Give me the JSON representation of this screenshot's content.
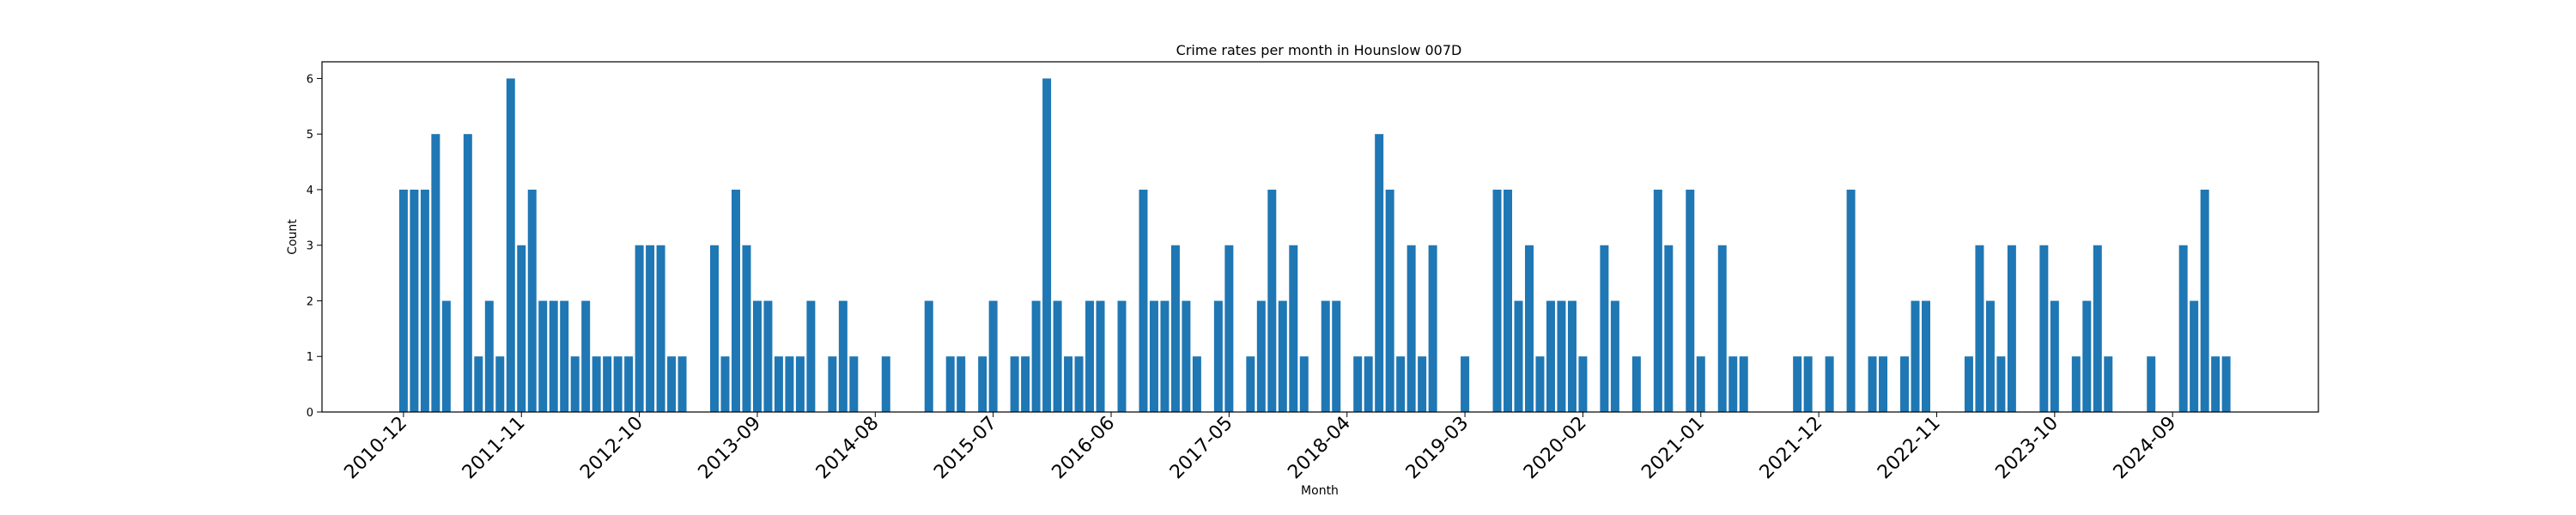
{
  "chart_data": {
    "type": "bar",
    "title": "Crime rates per month in Hounslow 007D",
    "xlabel": "Month",
    "ylabel": "Count",
    "ylim": [
      0,
      6.3
    ],
    "yticks": [
      0,
      1,
      2,
      3,
      4,
      5,
      6
    ],
    "bar_color": "#1f77b4",
    "xticks": [
      {
        "label": "2010-12",
        "x": 0
      },
      {
        "label": "2011-11",
        "x": 11
      },
      {
        "label": "2012-10",
        "x": 22
      },
      {
        "label": "2013-09",
        "x": 33
      },
      {
        "label": "2014-08",
        "x": 44
      },
      {
        "label": "2015-07",
        "x": 55
      },
      {
        "label": "2016-06",
        "x": 66
      },
      {
        "label": "2017-05",
        "x": 77
      },
      {
        "label": "2018-04",
        "x": 88
      },
      {
        "label": "2019-03",
        "x": 99
      },
      {
        "label": "2020-02",
        "x": 110
      },
      {
        "label": "2021-01",
        "x": 121
      },
      {
        "label": "2021-12",
        "x": 132
      },
      {
        "label": "2022-11",
        "x": 143
      },
      {
        "label": "2023-10",
        "x": 154
      },
      {
        "label": "2024-09",
        "x": 165
      }
    ],
    "bars": [
      [
        0,
        4
      ],
      [
        1,
        4
      ],
      [
        2,
        4
      ],
      [
        3,
        5
      ],
      [
        4,
        2
      ],
      [
        6,
        5
      ],
      [
        7,
        1
      ],
      [
        8,
        2
      ],
      [
        9,
        1
      ],
      [
        10,
        6
      ],
      [
        11,
        3
      ],
      [
        12,
        4
      ],
      [
        13,
        2
      ],
      [
        14,
        2
      ],
      [
        15,
        2
      ],
      [
        16,
        1
      ],
      [
        17,
        2
      ],
      [
        18,
        1
      ],
      [
        19,
        1
      ],
      [
        20,
        1
      ],
      [
        21,
        1
      ],
      [
        22,
        3
      ],
      [
        23,
        3
      ],
      [
        24,
        3
      ],
      [
        25,
        1
      ],
      [
        26,
        1
      ],
      [
        29,
        3
      ],
      [
        30,
        1
      ],
      [
        31,
        4
      ],
      [
        32,
        3
      ],
      [
        33,
        2
      ],
      [
        34,
        2
      ],
      [
        35,
        1
      ],
      [
        36,
        1
      ],
      [
        37,
        1
      ],
      [
        38,
        2
      ],
      [
        40,
        1
      ],
      [
        41,
        2
      ],
      [
        42,
        1
      ],
      [
        45,
        1
      ],
      [
        49,
        2
      ],
      [
        51,
        1
      ],
      [
        52,
        1
      ],
      [
        54,
        1
      ],
      [
        55,
        2
      ],
      [
        57,
        1
      ],
      [
        58,
        1
      ],
      [
        59,
        2
      ],
      [
        60,
        6
      ],
      [
        61,
        2
      ],
      [
        62,
        1
      ],
      [
        63,
        1
      ],
      [
        64,
        2
      ],
      [
        65,
        2
      ],
      [
        67,
        2
      ],
      [
        69,
        4
      ],
      [
        70,
        2
      ],
      [
        71,
        2
      ],
      [
        72,
        3
      ],
      [
        73,
        2
      ],
      [
        74,
        1
      ],
      [
        76,
        2
      ],
      [
        77,
        3
      ],
      [
        79,
        1
      ],
      [
        80,
        2
      ],
      [
        81,
        4
      ],
      [
        82,
        2
      ],
      [
        83,
        3
      ],
      [
        84,
        1
      ],
      [
        86,
        2
      ],
      [
        87,
        2
      ],
      [
        89,
        1
      ],
      [
        90,
        1
      ],
      [
        91,
        5
      ],
      [
        92,
        4
      ],
      [
        93,
        1
      ],
      [
        94,
        3
      ],
      [
        95,
        1
      ],
      [
        96,
        3
      ],
      [
        99,
        1
      ],
      [
        102,
        4
      ],
      [
        103,
        4
      ],
      [
        104,
        2
      ],
      [
        105,
        3
      ],
      [
        106,
        1
      ],
      [
        107,
        2
      ],
      [
        108,
        2
      ],
      [
        109,
        2
      ],
      [
        110,
        1
      ],
      [
        112,
        3
      ],
      [
        113,
        2
      ],
      [
        115,
        1
      ],
      [
        117,
        4
      ],
      [
        118,
        3
      ],
      [
        120,
        4
      ],
      [
        121,
        1
      ],
      [
        123,
        3
      ],
      [
        124,
        1
      ],
      [
        125,
        1
      ],
      [
        130,
        1
      ],
      [
        131,
        1
      ],
      [
        133,
        1
      ],
      [
        135,
        4
      ],
      [
        137,
        1
      ],
      [
        138,
        1
      ],
      [
        140,
        1
      ],
      [
        141,
        2
      ],
      [
        142,
        2
      ],
      [
        146,
        1
      ],
      [
        147,
        3
      ],
      [
        148,
        2
      ],
      [
        149,
        1
      ],
      [
        150,
        3
      ],
      [
        153,
        3
      ],
      [
        154,
        2
      ],
      [
        156,
        1
      ],
      [
        157,
        2
      ],
      [
        158,
        3
      ],
      [
        159,
        1
      ],
      [
        163,
        1
      ],
      [
        166,
        3
      ],
      [
        167,
        2
      ],
      [
        168,
        4
      ],
      [
        169,
        1
      ],
      [
        170,
        1
      ]
    ]
  }
}
